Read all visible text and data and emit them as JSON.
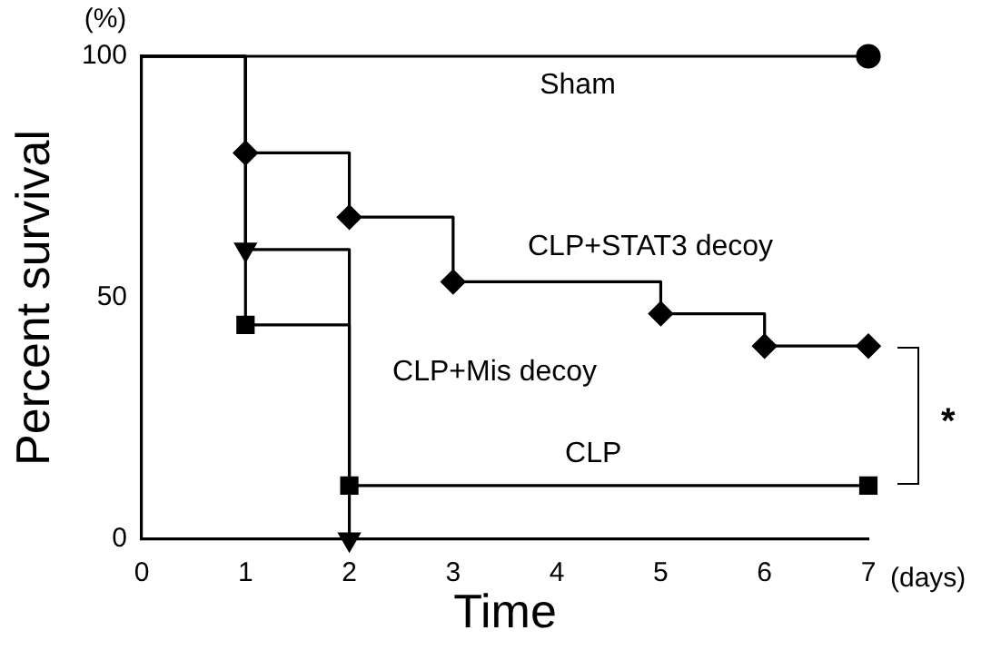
{
  "chart_data": {
    "type": "step",
    "xlabel": "Time",
    "ylabel": "Percent survival",
    "xlim": [
      0,
      7
    ],
    "ylim": [
      0,
      100
    ],
    "xticks": [
      0,
      1,
      2,
      3,
      4,
      5,
      6,
      7
    ],
    "yticks": [
      0,
      50,
      100
    ],
    "grid": false,
    "legend": false,
    "annotations": [
      "(%)",
      "(days)",
      "*"
    ],
    "series": [
      {
        "name": "Sham",
        "color": "#000000",
        "marker": "circle",
        "x": [
          0,
          7
        ],
        "values": [
          100,
          100
        ]
      },
      {
        "name": "CLP+STAT3 decoy",
        "color": "#000000",
        "marker": "diamond",
        "x": [
          0,
          1,
          2,
          3,
          5,
          6,
          7
        ],
        "values": [
          100,
          80,
          66.7,
          53.3,
          46.7,
          40,
          40
        ]
      },
      {
        "name": "CLP+Mis decoy",
        "color": "#000000",
        "marker": "triangle",
        "x": [
          0,
          1,
          2
        ],
        "values": [
          100,
          60,
          0
        ]
      },
      {
        "name": "CLP",
        "color": "#000000",
        "marker": "square",
        "x": [
          0,
          1,
          2,
          7
        ],
        "values": [
          100,
          44.4,
          11.1,
          11.1
        ]
      }
    ]
  }
}
